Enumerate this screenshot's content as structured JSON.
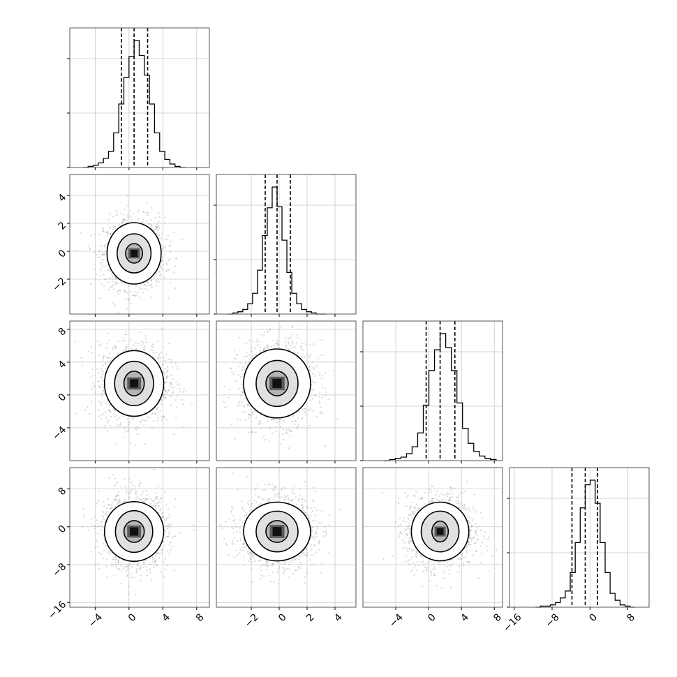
{
  "chart_data": {
    "type": "corner",
    "title": "",
    "params": [
      {
        "xlim": [
          -7,
          9.5
        ],
        "ticks": [
          -4,
          0,
          4,
          8
        ],
        "tick_labels": [
          "−4",
          "0",
          "4",
          "8"
        ],
        "median": 0.6,
        "q16": -0.9,
        "q84": 2.2
      },
      {
        "xlim": [
          -4.5,
          5.5
        ],
        "ticks": [
          -2,
          0,
          2,
          4
        ],
        "tick_labels": [
          "−2",
          "0",
          "2",
          "4"
        ],
        "median": -0.15,
        "q16": -1.0,
        "q84": 0.8
      },
      {
        "xlim": [
          -8,
          9
        ],
        "ticks": [
          -4,
          0,
          4,
          8
        ],
        "tick_labels": [
          "−4",
          "0",
          "4",
          "8"
        ],
        "median": 1.4,
        "q16": -0.3,
        "q84": 3.2
      },
      {
        "xlim": [
          -17,
          12.5
        ],
        "ticks": [
          -16,
          -8,
          0,
          8
        ],
        "tick_labels": [
          "−16",
          "−8",
          "0",
          "8"
        ],
        "median": -1.0,
        "q16": -3.8,
        "q84": 1.6
      }
    ],
    "histograms": [
      {
        "bin_counts": [
          0,
          1,
          2,
          4,
          8,
          14,
          30,
          55,
          78,
          96,
          110,
          97,
          80,
          55,
          30,
          14,
          7,
          3,
          1,
          0
        ]
      },
      {
        "bin_counts": [
          0,
          1,
          2,
          4,
          9,
          18,
          38,
          68,
          92,
          110,
          93,
          64,
          36,
          18,
          9,
          4,
          2,
          1,
          0,
          0
        ]
      },
      {
        "bin_counts": [
          0,
          1,
          2,
          3,
          6,
          12,
          24,
          48,
          78,
          96,
          110,
          98,
          78,
          50,
          28,
          15,
          8,
          4,
          2,
          1
        ]
      },
      {
        "bin_counts": [
          0,
          1,
          1,
          2,
          4,
          8,
          14,
          30,
          56,
          86,
          106,
          110,
          90,
          56,
          30,
          12,
          6,
          2,
          1,
          0
        ]
      }
    ],
    "pairs": [
      {
        "row": 1,
        "col": 0,
        "center": [
          0.6,
          -0.15
        ],
        "levels": [
          [
            1.0,
            0.7
          ],
          [
            2.0,
            1.4
          ],
          [
            3.2,
            2.2
          ]
        ],
        "n_points": 1300
      },
      {
        "row": 2,
        "col": 0,
        "center": [
          0.6,
          1.4
        ],
        "levels": [
          [
            1.2,
            1.5
          ],
          [
            2.3,
            2.7
          ],
          [
            3.5,
            4.0
          ]
        ],
        "n_points": 1300
      },
      {
        "row": 2,
        "col": 1,
        "center": [
          -0.15,
          1.4
        ],
        "levels": [
          [
            0.8,
            1.5
          ],
          [
            1.5,
            2.8
          ],
          [
            2.4,
            4.2
          ]
        ],
        "n_points": 1300
      },
      {
        "row": 3,
        "col": 0,
        "center": [
          0.6,
          -1.0
        ],
        "levels": [
          [
            1.2,
            2.3
          ],
          [
            2.2,
            4.4
          ],
          [
            3.5,
            6.3
          ]
        ],
        "n_points": 1300
      },
      {
        "row": 3,
        "col": 1,
        "center": [
          -0.15,
          -1.0
        ],
        "levels": [
          [
            0.8,
            2.3
          ],
          [
            1.5,
            4.3
          ],
          [
            2.4,
            6.2
          ]
        ],
        "n_points": 1300
      },
      {
        "row": 3,
        "col": 2,
        "center": [
          1.4,
          -1.0
        ],
        "levels": [
          [
            1.0,
            2.2
          ],
          [
            2.3,
            4.3
          ],
          [
            3.5,
            6.2
          ]
        ],
        "n_points": 1300
      }
    ],
    "grid": true,
    "legend": "none"
  }
}
